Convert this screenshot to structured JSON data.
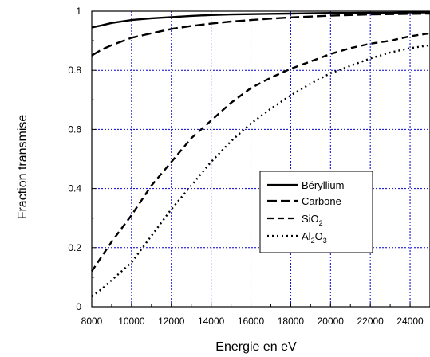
{
  "chart_data": {
    "type": "line",
    "xlabel": "Energie en eV",
    "ylabel": "Fraction transmise",
    "xlim": [
      8000,
      25000
    ],
    "ylim": [
      0,
      1
    ],
    "x_ticks": [
      "8000",
      "10000",
      "12000",
      "14000",
      "16000",
      "18000",
      "20000",
      "22000",
      "24000"
    ],
    "y_ticks": [
      "0",
      "0.2",
      "0.4",
      "0.6",
      "0.8",
      "1"
    ],
    "grid": true,
    "grid_color": "#0000cc",
    "legend_position": "center-right",
    "x": [
      8000,
      8500,
      9000,
      10000,
      11000,
      12000,
      13000,
      14000,
      15000,
      16000,
      17000,
      18000,
      19000,
      20000,
      21000,
      22000,
      23000,
      24000,
      25000
    ],
    "series": [
      {
        "name": "Béryllium",
        "dash": "solid",
        "values": [
          0.945,
          0.952,
          0.96,
          0.97,
          0.976,
          0.98,
          0.984,
          0.987,
          0.989,
          0.99,
          0.991,
          0.992,
          0.993,
          0.994,
          0.994,
          0.995,
          0.995,
          0.996,
          0.996
        ]
      },
      {
        "name": "Carbone",
        "dash": "longdash",
        "values": [
          0.85,
          0.87,
          0.885,
          0.91,
          0.925,
          0.94,
          0.95,
          0.958,
          0.965,
          0.97,
          0.975,
          0.979,
          0.982,
          0.985,
          0.987,
          0.989,
          0.99,
          0.991,
          0.992
        ]
      },
      {
        "name": "SiO2",
        "label_main": "SiO",
        "label_sub": "2",
        "dash": "dash",
        "values": [
          0.12,
          0.17,
          0.22,
          0.31,
          0.41,
          0.49,
          0.57,
          0.63,
          0.69,
          0.74,
          0.775,
          0.805,
          0.83,
          0.855,
          0.875,
          0.89,
          0.9,
          0.915,
          0.925
        ]
      },
      {
        "name": "Al2O3",
        "label_parts": [
          "Al",
          "2",
          "O",
          "3"
        ],
        "dash": "dot",
        "values": [
          0.035,
          0.06,
          0.09,
          0.15,
          0.24,
          0.33,
          0.41,
          0.49,
          0.56,
          0.62,
          0.67,
          0.715,
          0.755,
          0.79,
          0.815,
          0.84,
          0.86,
          0.875,
          0.885
        ]
      }
    ]
  }
}
